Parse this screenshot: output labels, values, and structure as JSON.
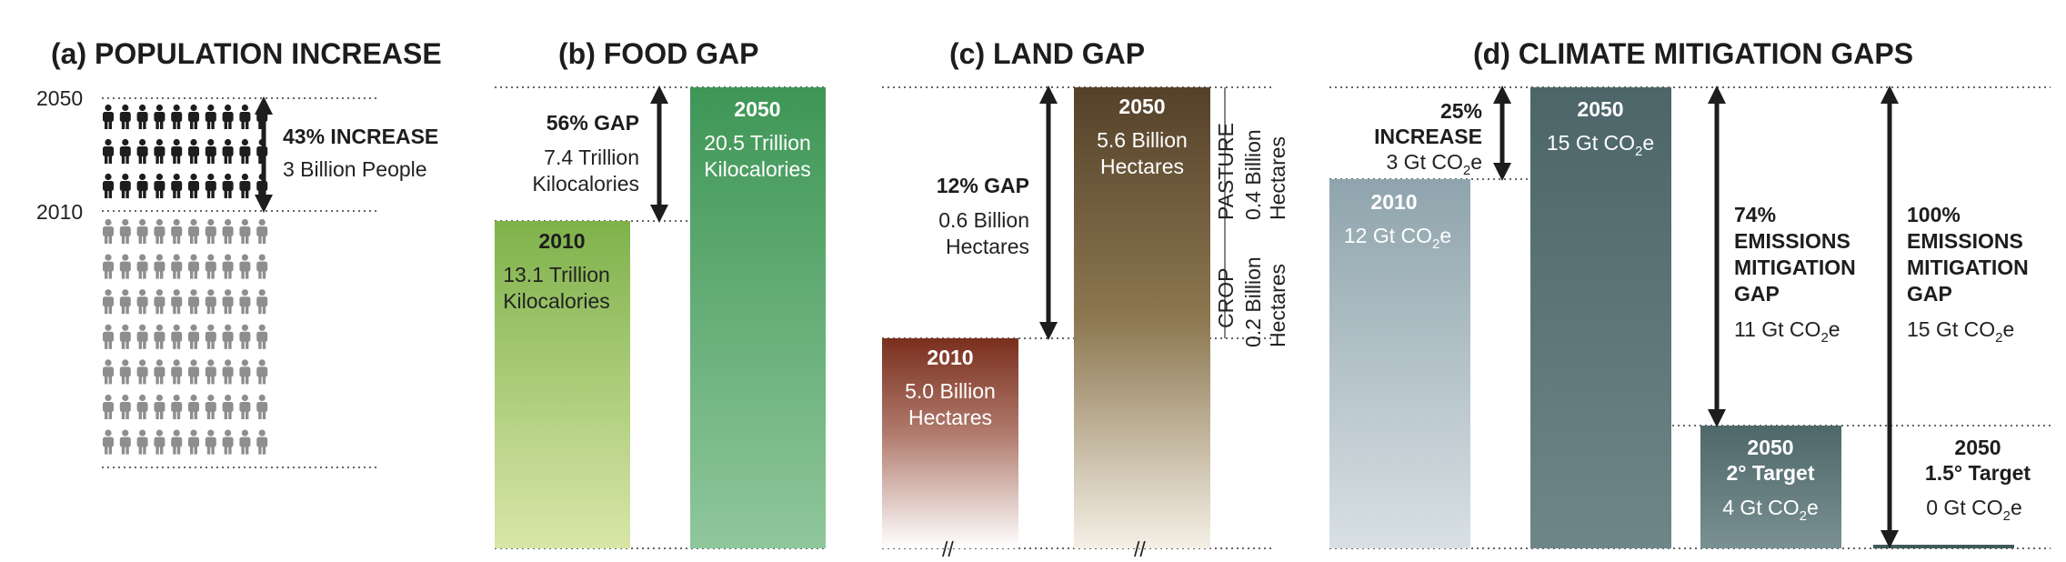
{
  "chart_data": [
    {
      "type": "bar",
      "title": "(a) POPULATION INCREASE",
      "categories": [
        "2010",
        "2050"
      ],
      "values": [
        7.0,
        10.0
      ],
      "unit": "Billion People",
      "tick_labels": [
        "2050",
        "2010"
      ],
      "annotation": {
        "heading": "43% INCREASE",
        "detail": "3 Billion People"
      },
      "colors": {
        "2010": "#8e8e8e",
        "2050": "#1d1d1d"
      }
    },
    {
      "type": "bar",
      "title": "(b) FOOD GAP",
      "categories": [
        "2010",
        "2050"
      ],
      "values": [
        13.1,
        20.5
      ],
      "unit": "Trillion Kilocalories",
      "bars": [
        {
          "year": "2010",
          "value_text": "13.1 Trillion",
          "unit_text": "Kilocalories"
        },
        {
          "year": "2050",
          "value_text": "20.5 Trillion",
          "unit_text": "Kilocalories"
        }
      ],
      "annotation": {
        "heading": "56% GAP",
        "detail1": "7.4 Trillion",
        "detail2": "Kilocalories"
      },
      "colors": {
        "2010_top": "#7fb24b",
        "2010_bottom": "#d8e6a8",
        "2050_top": "#3e9656",
        "2050_bottom": "#8fc79b"
      }
    },
    {
      "type": "bar",
      "title": "(c) LAND GAP",
      "categories": [
        "2010",
        "2050"
      ],
      "values": [
        5.0,
        5.6
      ],
      "unit": "Billion Hectares",
      "bars": [
        {
          "year": "2010",
          "value_text": "5.0 Billion",
          "unit_text": "Hectares"
        },
        {
          "year": "2050",
          "value_text": "5.6 Billion",
          "unit_text": "Hectares"
        }
      ],
      "annotation": {
        "heading": "12% GAP",
        "detail1": "0.6 Billion",
        "detail2": "Hectares"
      },
      "segments": [
        {
          "name": "PASTURE",
          "value_text": "0.4 Billion",
          "unit_text": "Hectares",
          "value": 0.4
        },
        {
          "name": "CROP",
          "value_text": "0.2 Billion",
          "unit_text": "Hectares",
          "value": 0.2
        }
      ],
      "axis_break": "//",
      "colors": {
        "2010_top": "#7a2f1e",
        "2010_bottom": "#ffffff",
        "2050_top": "#5a4527",
        "2050_bottom": "#ffffff"
      }
    },
    {
      "type": "bar",
      "title": "(d) CLIMATE MITIGATION GAPS",
      "unit": "Gt CO2e",
      "categories": [
        "2010",
        "2050",
        "2050 2° Target",
        "2050 1.5° Target"
      ],
      "values": [
        12,
        15,
        4,
        0
      ],
      "bars": [
        {
          "line1": "2010",
          "line2": "",
          "value_pre": "12 Gt CO",
          "sub": "2",
          "value_post": "e"
        },
        {
          "line1": "2050",
          "line2": "",
          "value_pre": "15 Gt CO",
          "sub": "2",
          "value_post": "e"
        },
        {
          "line1": "2050",
          "line2": "2° Target",
          "value_pre": "4 Gt CO",
          "sub": "2",
          "value_post": "e"
        },
        {
          "line1": "2050",
          "line2": "1.5° Target",
          "value_pre": "0 Gt CO",
          "sub": "2",
          "value_post": "e"
        }
      ],
      "annotations": [
        {
          "lines": [
            "25%",
            "INCREASE"
          ],
          "value_pre": "3 Gt CO",
          "sub": "2",
          "value_post": "e"
        },
        {
          "lines": [
            "74%",
            "EMISSIONS",
            "MITIGATION",
            "GAP"
          ],
          "value_pre": "11 Gt CO",
          "sub": "2",
          "value_post": "e"
        },
        {
          "lines": [
            "100%",
            "EMISSIONS",
            "MITIGATION",
            "GAP"
          ],
          "value_pre": "15 Gt CO",
          "sub": "2",
          "value_post": "e"
        }
      ],
      "colors": {
        "2010_top": "#8fa4ad",
        "2010_bottom": "#d8e0e4",
        "2050": "#4c6569",
        "2050_bottom": "#6f8689",
        "target_2": "#5a7375",
        "target_15": "#3f5a5c"
      }
    }
  ]
}
